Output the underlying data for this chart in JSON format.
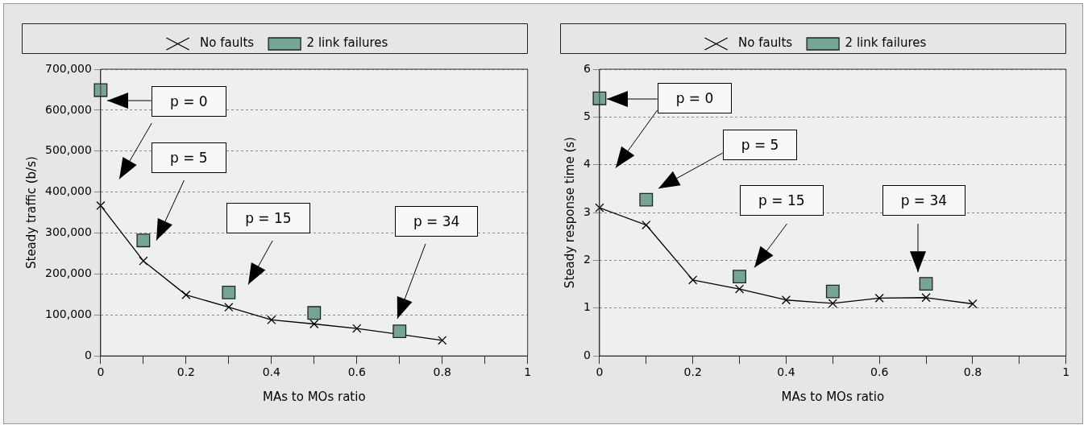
{
  "chart_data": [
    {
      "type": "line",
      "xlabel": "MAs to MOs ratio",
      "ylabel": "Steady traffic (b/s)",
      "legend": "top",
      "grid": "y",
      "xlim": [
        0,
        1
      ],
      "xticks": [
        0,
        {
          "value": 0.1,
          "label": null
        },
        0.2,
        {
          "value": 0.3,
          "label": null
        },
        0.4,
        {
          "value": 0.5,
          "label": null
        },
        0.6,
        {
          "value": 0.7,
          "label": null
        },
        0.8,
        {
          "value": 0.9,
          "label": null
        },
        1
      ],
      "ylim": [
        0,
        700000
      ],
      "yticks": [
        {
          "value": 0,
          "label": "0"
        },
        {
          "value": 100000,
          "label": "100,000"
        },
        {
          "value": 200000,
          "label": "200,000"
        },
        {
          "value": 300000,
          "label": "300,000"
        },
        {
          "value": 400000,
          "label": "400,000"
        },
        {
          "value": 500000,
          "label": "500,000"
        },
        {
          "value": 600000,
          "label": "600,000"
        },
        {
          "value": 700000,
          "label": "700,000"
        }
      ],
      "series": [
        {
          "name": "No faults",
          "type": "line",
          "marker": "cross",
          "color": "#000000",
          "x": [
            0,
            0.1,
            0.2,
            0.3,
            0.4,
            0.5,
            0.6,
            0.7,
            0.8
          ],
          "values": [
            367000,
            232000,
            149000,
            119000,
            88000,
            78000,
            67000,
            null,
            38000
          ]
        },
        {
          "name": "2 link failures",
          "type": "scatter",
          "marker": "square",
          "color": "#76a497",
          "x": [
            0,
            0.1,
            0.3,
            0.5,
            0.7
          ],
          "values": [
            649000,
            282000,
            155000,
            105000,
            60000
          ]
        }
      ],
      "annotations": [
        "p = 0",
        "p = 5",
        "p = 15",
        "p = 34"
      ]
    },
    {
      "type": "line",
      "xlabel": "MAs to MOs ratio",
      "ylabel": "Steady response time (s)",
      "legend": "top",
      "grid": "y",
      "xlim": [
        0,
        1
      ],
      "xticks": [
        0,
        {
          "value": 0.1,
          "label": null
        },
        0.2,
        {
          "value": 0.3,
          "label": null
        },
        0.4,
        {
          "value": 0.5,
          "label": null
        },
        0.6,
        {
          "value": 0.7,
          "label": null
        },
        0.8,
        {
          "value": 0.9,
          "label": null
        },
        1
      ],
      "ylim": [
        0,
        6
      ],
      "yticks": [
        0,
        1,
        2,
        3,
        4,
        5,
        6
      ],
      "series": [
        {
          "name": "No faults",
          "type": "line",
          "marker": "cross",
          "color": "#000000",
          "x": [
            0,
            0.1,
            0.2,
            0.3,
            0.4,
            0.5,
            0.6,
            0.7,
            0.8
          ],
          "values": [
            3.1,
            2.74,
            1.59,
            1.4,
            1.17,
            1.1,
            1.21,
            1.22,
            1.09
          ]
        },
        {
          "name": "2 link failures",
          "type": "scatter",
          "marker": "square",
          "color": "#76a497",
          "x": [
            0,
            0.1,
            0.3,
            0.5,
            0.7
          ],
          "values": [
            5.39,
            3.27,
            1.66,
            1.35,
            1.51
          ]
        }
      ],
      "annotations": [
        "p = 0",
        "p = 5",
        "p = 15",
        "p = 34"
      ]
    }
  ]
}
